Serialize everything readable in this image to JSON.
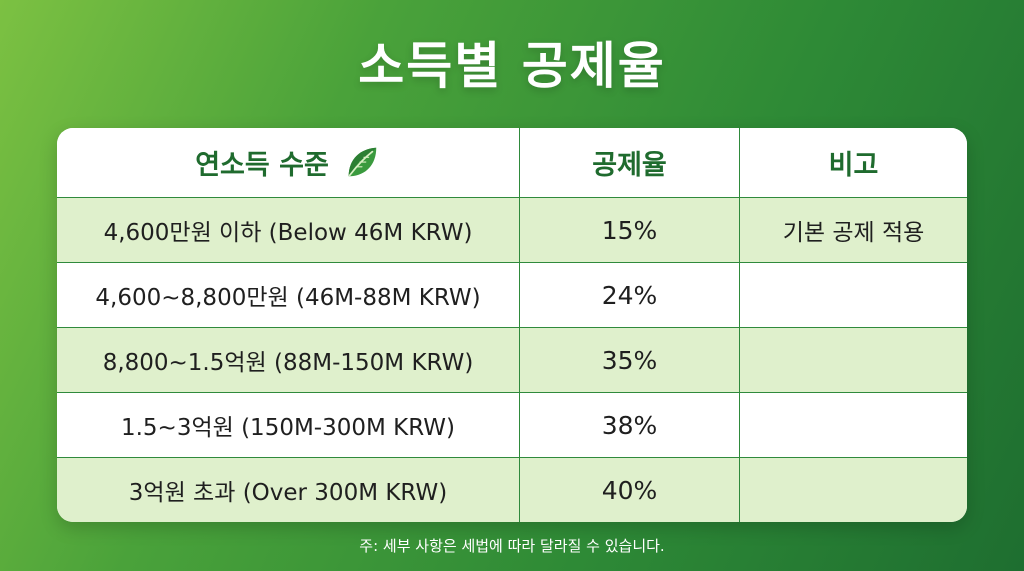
{
  "title": "소득별 공제율",
  "table": {
    "headers": {
      "income": "연소득 수준",
      "rate": "공제율",
      "note": "비고"
    },
    "header_icon": "leaf-icon",
    "rows": [
      {
        "income": "4,600만원 이하 (Below 46M KRW)",
        "rate": "15%",
        "note": "기본 공제 적용"
      },
      {
        "income": "4,600~8,800만원 (46M-88M KRW)",
        "rate": "24%",
        "note": ""
      },
      {
        "income": "8,800~1.5억원 (88M-150M KRW)",
        "rate": "35%",
        "note": ""
      },
      {
        "income": "1.5~3억원 (150M-300M KRW)",
        "rate": "38%",
        "note": ""
      },
      {
        "income": "3억원 초과 (Over 300M KRW)",
        "rate": "40%",
        "note": ""
      }
    ]
  },
  "footnote": "주: 세부 사항은 세법에 따라 달라질 수 있습니다.",
  "colors": {
    "header_text": "#1f6b2e",
    "row_tint": "#dff0cc",
    "grid_line": "#2f8a3c",
    "background_start": "#7cc142",
    "background_end": "#1e6e30"
  }
}
